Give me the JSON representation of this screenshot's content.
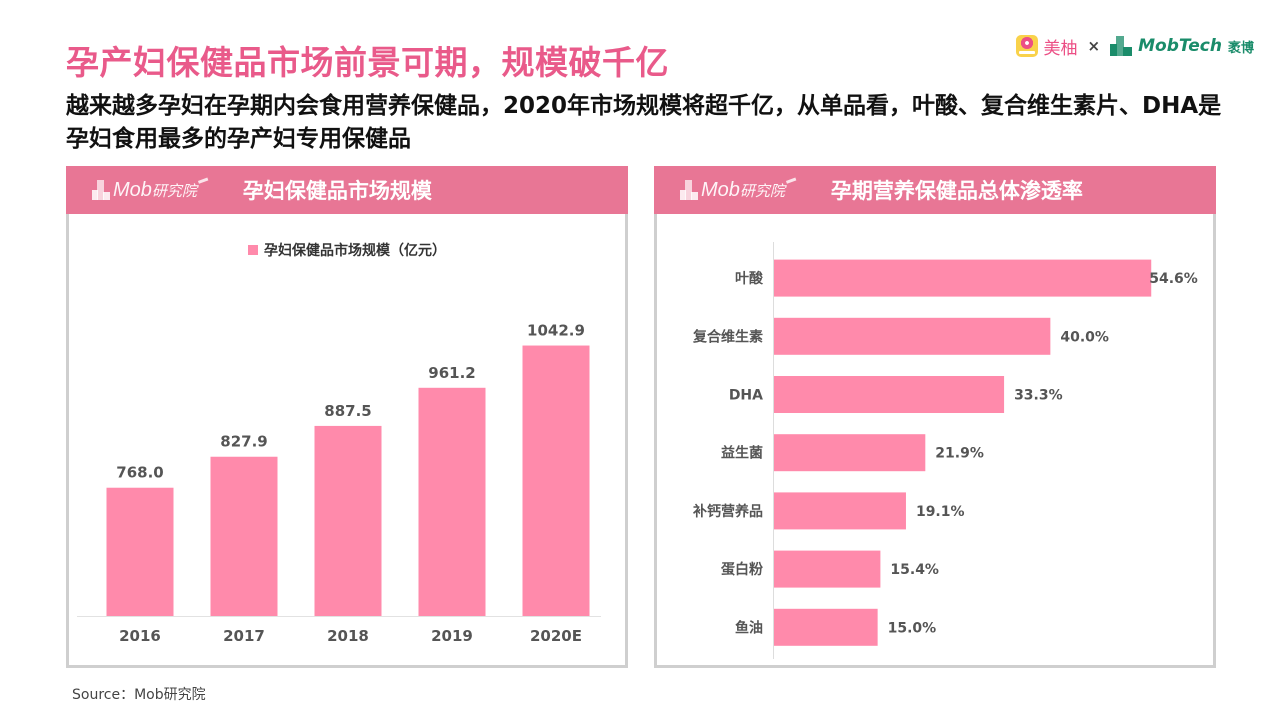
{
  "header": {
    "title": "孕产妇保健品市场前景可期，规模破千亿",
    "subtitle": "越来越多孕妇在孕期内会食用营养保健品，2020年市场规模将超千亿，从单品看，叶酸、复合维生素片、DHA是孕妇食用最多的孕产妇专用保健品"
  },
  "brand": {
    "meiyou_label": "美柚",
    "times": "×",
    "mobtech_label": "MobTech",
    "mobtech_cn": "袤博"
  },
  "colors": {
    "title_pink": "#e95a8a",
    "header_pink": "#e87695",
    "bar_pink": "#ff8aab",
    "label_gray": "#555555"
  },
  "panels": {
    "left": {
      "logo_text": "Mob",
      "logo_cn": "研究院",
      "title": "孕妇保健品市场规模"
    },
    "right": {
      "logo_text": "Mob",
      "logo_cn": "研究院",
      "title": "孕期营养保健品总体渗透率"
    }
  },
  "chart_data": [
    {
      "type": "bar",
      "title": "孕妇保健品市场规模",
      "legend": [
        "孕妇保健品市场规模（亿元）"
      ],
      "legend_position": "top-center",
      "categories": [
        "2016",
        "2017",
        "2018",
        "2019",
        "2020E"
      ],
      "values": [
        768.0,
        827.9,
        887.5,
        961.2,
        1042.9
      ],
      "value_labels": [
        "768.0",
        "827.9",
        "887.5",
        "961.2",
        "1042.9"
      ],
      "xlabel": "",
      "ylabel": "",
      "ylim": [
        520,
        1100
      ],
      "grid": false
    },
    {
      "type": "bar",
      "orientation": "horizontal",
      "title": "孕期营养保健品总体渗透率",
      "categories": [
        "叶酸",
        "复合维生素",
        "DHA",
        "益生菌",
        "补钙营养品",
        "蛋白粉",
        "鱼油"
      ],
      "values": [
        54.6,
        40.0,
        33.3,
        21.9,
        19.1,
        15.4,
        15.0
      ],
      "value_labels": [
        "54.6%",
        "40.0%",
        "33.3%",
        "21.9%",
        "19.1%",
        "15.4%",
        "15.0%"
      ],
      "unit": "%",
      "xlim": [
        0,
        55
      ],
      "grid": false
    }
  ],
  "footer": {
    "source": "Source：Mob研究院"
  }
}
